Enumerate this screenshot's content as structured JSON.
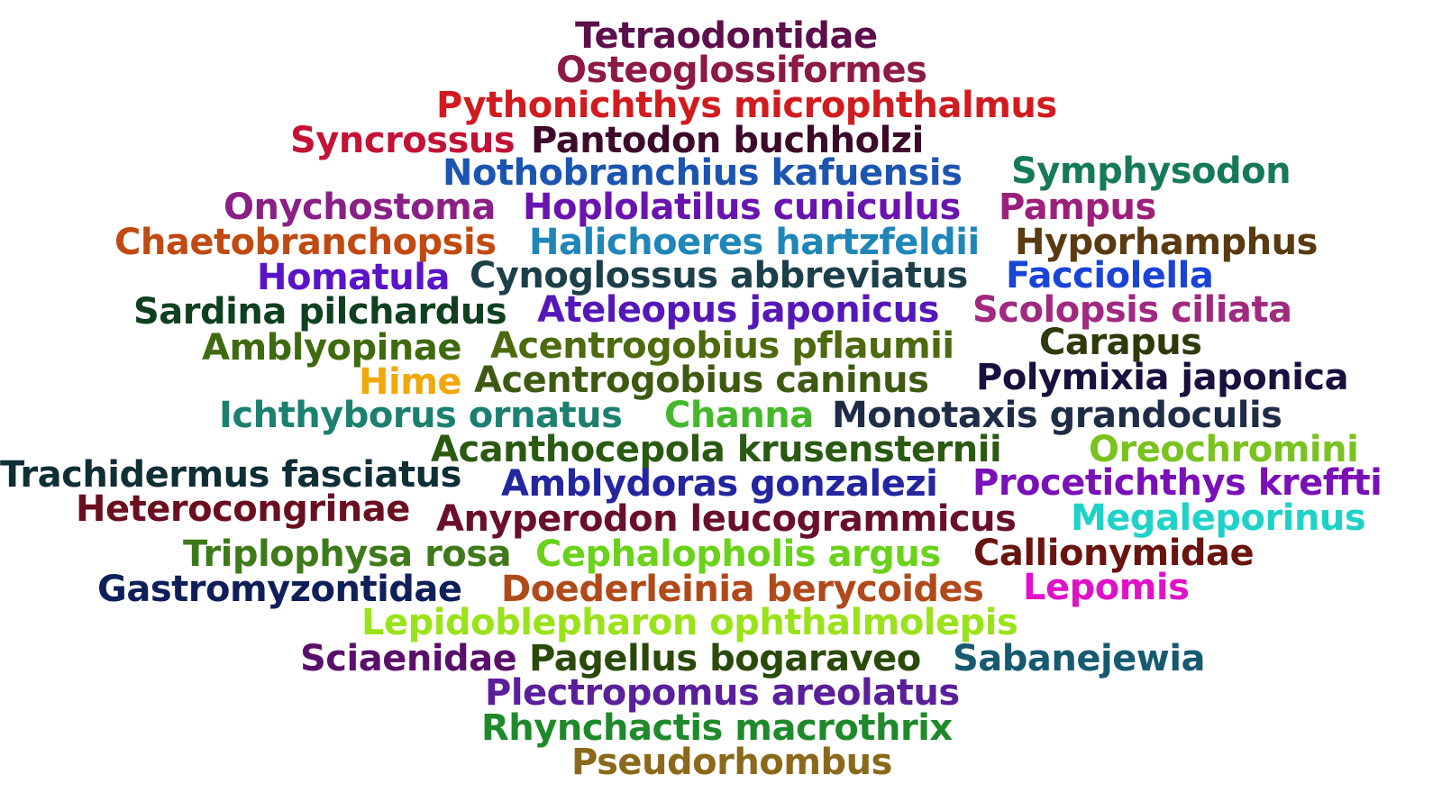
{
  "word_cloud": {
    "words": [
      {
        "text": "Tetraodontidae",
        "color": "#5c0f4a"
      },
      {
        "text": "Osteoglossiformes",
        "color": "#8c1a45"
      },
      {
        "text": "Pythonichthys microphthalmus",
        "color": "#d21b1e"
      },
      {
        "text": "Syncrossus",
        "color": "#c41236"
      },
      {
        "text": "Pantodon buchholzi",
        "color": "#3d0a2a"
      },
      {
        "text": "Nothobranchius kafuensis",
        "color": "#1c55b0"
      },
      {
        "text": "Symphysodon",
        "color": "#167a5a"
      },
      {
        "text": "Onychostoma",
        "color": "#8a1f86"
      },
      {
        "text": "Hoplolatilus cuniculus",
        "color": "#6a14b0"
      },
      {
        "text": "Pampus",
        "color": "#9c1f7c"
      },
      {
        "text": "Chaetobranchopsis",
        "color": "#c04a12"
      },
      {
        "text": "Halichoeres hartzfeldii",
        "color": "#1f86b8"
      },
      {
        "text": "Hyporhamphus",
        "color": "#5a3a10"
      },
      {
        "text": "Homatula",
        "color": "#5a14c8"
      },
      {
        "text": "Cynoglossus abbreviatus",
        "color": "#1c3f4a"
      },
      {
        "text": "Facciolella",
        "color": "#1a44d6"
      },
      {
        "text": "Sardina pilchardus",
        "color": "#0f4020"
      },
      {
        "text": "Ateleopus japonicus",
        "color": "#5518b8"
      },
      {
        "text": "Scolopsis ciliata",
        "color": "#a02a80"
      },
      {
        "text": "Amblyopinae",
        "color": "#3f6a10"
      },
      {
        "text": "Acentrogobius pflaumii",
        "color": "#4d6a0f"
      },
      {
        "text": "Carapus",
        "color": "#2e3a0c"
      },
      {
        "text": "Hime",
        "color": "#f0a80a"
      },
      {
        "text": "Acentrogobius caninus",
        "color": "#3e5a12"
      },
      {
        "text": "Polymixia japonica",
        "color": "#1a0f3e"
      },
      {
        "text": "Ichthyborus ornatus",
        "color": "#1c8070"
      },
      {
        "text": "Channa",
        "color": "#44b82a"
      },
      {
        "text": "Monotaxis grandoculis",
        "color": "#1f2c46"
      },
      {
        "text": "Acanthocepola krusensternii",
        "color": "#2a5a12"
      },
      {
        "text": "Oreochromini",
        "color": "#7ac21f"
      },
      {
        "text": "Trachidermus fasciatus",
        "color": "#0f2e36"
      },
      {
        "text": "Amblydoras gonzalezi",
        "color": "#2426a0"
      },
      {
        "text": "Procetichthys kreffti",
        "color": "#7a10b8"
      },
      {
        "text": "Heterocongrinae",
        "color": "#6a0f1f"
      },
      {
        "text": "Anyperodon leucogrammicus",
        "color": "#6a0f2a"
      },
      {
        "text": "Megaleporinus",
        "color": "#1fd2c8"
      },
      {
        "text": "Triplophysa rosa",
        "color": "#3f7a1a"
      },
      {
        "text": "Cephalopholis argus",
        "color": "#6ad21a"
      },
      {
        "text": "Callionymidae",
        "color": "#6a1410"
      },
      {
        "text": "Gastromyzontidae",
        "color": "#0f1f5a"
      },
      {
        "text": "Doederleinia berycoides",
        "color": "#b04a1a"
      },
      {
        "text": "Lepomis",
        "color": "#e012c8"
      },
      {
        "text": "Lepidoblepharon ophthalmolepis",
        "color": "#9ae21a"
      },
      {
        "text": "Sciaenidae",
        "color": "#5a0f6a"
      },
      {
        "text": "Pagellus bogaraveo",
        "color": "#2a4a0c"
      },
      {
        "text": "Sabanejewia",
        "color": "#165a70"
      },
      {
        "text": "Plectropomus areolatus",
        "color": "#5a1f9a"
      },
      {
        "text": "Rhynchactis macrothrix",
        "color": "#1e8a2a"
      },
      {
        "text": "Pseudorhombus",
        "color": "#8a6a1a"
      }
    ]
  }
}
